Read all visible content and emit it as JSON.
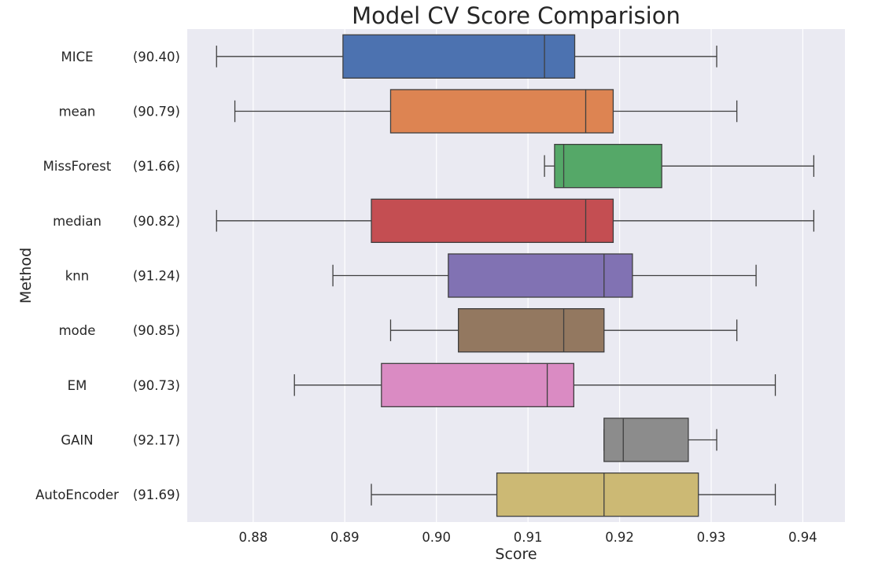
{
  "chart_data": {
    "type": "boxplot",
    "orientation": "horizontal",
    "title": "Model CV Score Comparision",
    "xlabel": "Score",
    "ylabel": "Method",
    "xlim": [
      0.8728,
      0.9446
    ],
    "xticks": [
      0.88,
      0.89,
      0.9,
      0.91,
      0.92,
      0.93,
      0.94
    ],
    "xtick_labels": [
      "0.88",
      "0.89",
      "0.90",
      "0.91",
      "0.92",
      "0.93",
      "0.94"
    ],
    "grid": true,
    "background": "#EAEAF2",
    "categories": [
      {
        "label": "MICE",
        "mean_label": "(90.40)",
        "color": "#4C72B0",
        "whisker_low": 0.876,
        "q1": 0.8898,
        "median": 0.9118,
        "q3": 0.9151,
        "whisker_high": 0.9306
      },
      {
        "label": "mean",
        "mean_label": "(90.79)",
        "color": "#DD8452",
        "whisker_low": 0.878,
        "q1": 0.895,
        "median": 0.9163,
        "q3": 0.9193,
        "whisker_high": 0.9328
      },
      {
        "label": "MissForest",
        "mean_label": "(91.66)",
        "color": "#55A868",
        "whisker_low": 0.9118,
        "q1": 0.9129,
        "median": 0.9139,
        "q3": 0.9246,
        "whisker_high": 0.9412
      },
      {
        "label": "median",
        "mean_label": "(90.82)",
        "color": "#C44E52",
        "whisker_low": 0.876,
        "q1": 0.8929,
        "median": 0.9163,
        "q3": 0.9193,
        "whisker_high": 0.9412
      },
      {
        "label": "knn",
        "mean_label": "(91.24)",
        "color": "#8172B3",
        "whisker_low": 0.8887,
        "q1": 0.9013,
        "median": 0.9183,
        "q3": 0.9214,
        "whisker_high": 0.9349
      },
      {
        "label": "mode",
        "mean_label": "(90.85)",
        "color": "#937860",
        "whisker_low": 0.895,
        "q1": 0.9024,
        "median": 0.9139,
        "q3": 0.9183,
        "whisker_high": 0.9328
      },
      {
        "label": "EM",
        "mean_label": "(90.73)",
        "color": "#DA8BC3",
        "whisker_low": 0.8845,
        "q1": 0.894,
        "median": 0.9121,
        "q3": 0.915,
        "whisker_high": 0.937
      },
      {
        "label": "GAIN",
        "mean_label": "(92.17)",
        "color": "#8C8C8C",
        "whisker_low": 0.9183,
        "q1": 0.9183,
        "median": 0.9204,
        "q3": 0.9275,
        "whisker_high": 0.9306
      },
      {
        "label": "AutoEncoder",
        "mean_label": "(91.69)",
        "color": "#CCB974",
        "whisker_low": 0.8929,
        "q1": 0.9066,
        "median": 0.9183,
        "q3": 0.9286,
        "whisker_high": 0.937
      }
    ]
  }
}
